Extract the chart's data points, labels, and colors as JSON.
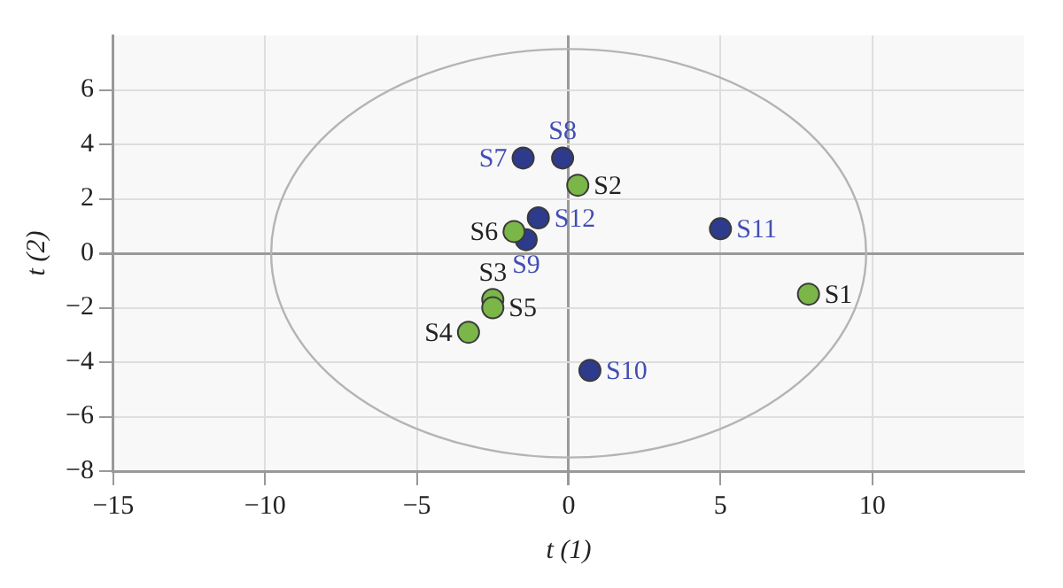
{
  "chart_data": {
    "type": "scatter",
    "xlabel": "t (1)",
    "ylabel": "t (2)",
    "xlim": [
      -15,
      15
    ],
    "xticks": [
      -15,
      -10,
      -5,
      0,
      5,
      10
    ],
    "ylim": [
      -8,
      8
    ],
    "yticks": [
      -8,
      -6,
      -4,
      -2,
      0,
      2,
      4,
      6
    ],
    "grid": true,
    "marker": "circle",
    "series": [
      {
        "color": "#7ab648",
        "x": [
          7.9,
          0.3,
          -2.5,
          -3.3,
          -2.5,
          -1.8
        ],
        "values": [
          -1.5,
          2.5,
          -1.7,
          -2.9,
          -2.0,
          0.8
        ]
      },
      {
        "color": "#2e3a8c",
        "x": [
          -1.5,
          -0.2,
          -1.4,
          0.7,
          5.0,
          -1.0
        ],
        "values": [
          3.5,
          3.5,
          0.5,
          -4.3,
          0.9,
          1.3
        ]
      }
    ],
    "annotations": [
      {
        "text": "S1",
        "x": 7.9,
        "y": -1.5
      },
      {
        "text": "S2",
        "x": 0.3,
        "y": 2.5
      },
      {
        "text": "S3",
        "x": -2.5,
        "y": -1.7
      },
      {
        "text": "S4",
        "x": -3.3,
        "y": -2.9
      },
      {
        "text": "S5",
        "x": -2.5,
        "y": -2.0
      },
      {
        "text": "S6",
        "x": -1.8,
        "y": 0.8
      },
      {
        "text": "S7",
        "x": -1.5,
        "y": 3.5
      },
      {
        "text": "S8",
        "x": -0.2,
        "y": 3.5
      },
      {
        "text": "S9",
        "x": -1.4,
        "y": 0.5
      },
      {
        "text": "S10",
        "x": 0.7,
        "y": -4.3
      },
      {
        "text": "S11",
        "x": 5.0,
        "y": 0.9
      },
      {
        "text": "S12",
        "x": -1.0,
        "y": 1.3
      }
    ]
  }
}
